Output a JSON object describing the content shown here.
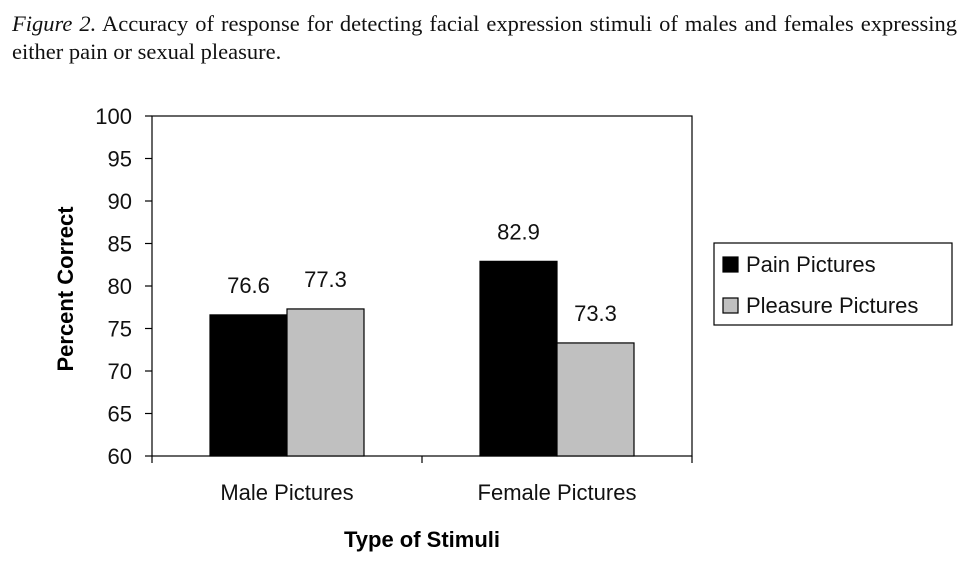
{
  "caption": {
    "figure_label": "Figure 2.",
    "text": "Accuracy of response for detecting facial expression stimuli of males and females expressing either pain or sexual pleasure."
  },
  "colors": {
    "pain": "#000000",
    "pleasure": "#c0c0c0",
    "axis": "#000000",
    "background": "#ffffff"
  },
  "chart_data": {
    "type": "bar",
    "title": "",
    "xlabel": "Type of Stimuli",
    "ylabel": "Percent Correct",
    "categories": [
      "Male Pictures",
      "Female Pictures"
    ],
    "series": [
      {
        "name": "Pain Pictures",
        "values": [
          76.6,
          82.9
        ],
        "color": "#000000"
      },
      {
        "name": "Pleasure Pictures",
        "values": [
          77.3,
          73.3
        ],
        "color": "#c0c0c0"
      }
    ],
    "data_labels": [
      [
        "76.6",
        "82.9"
      ],
      [
        "77.3",
        "73.3"
      ]
    ],
    "ylim": [
      60,
      100
    ],
    "yticks": [
      60,
      65,
      70,
      75,
      80,
      85,
      90,
      95,
      100
    ],
    "grid": false,
    "legend_position": "right"
  }
}
